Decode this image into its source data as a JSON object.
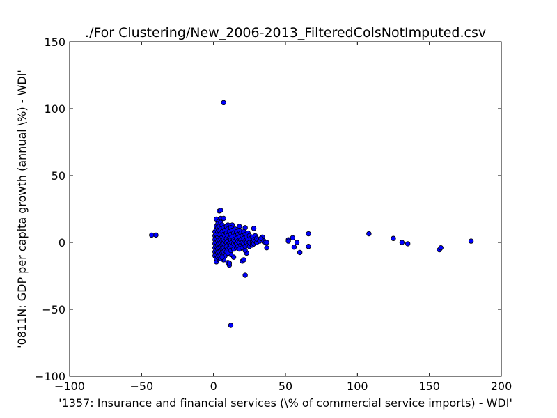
{
  "chart_data": {
    "type": "scatter",
    "title": "./For Clustering/New_2006-2013_FilteredColsNotImputed.csv",
    "xlabel": "'1357: Insurance and financial services  (\\% of commercial service imports) - WDI'",
    "ylabel": "'0811N: GDP per capita growth  (annual \\%) - WDI'",
    "xlim": [
      -100,
      200
    ],
    "ylim": [
      -100,
      150
    ],
    "xticks": [
      "−100",
      "−50",
      "0",
      "50",
      "100",
      "150",
      "200"
    ],
    "yticks": [
      "−100",
      "−50",
      "0",
      "50",
      "100",
      "150"
    ],
    "xtick_values": [
      -100,
      -50,
      0,
      50,
      100,
      150,
      200
    ],
    "ytick_values": [
      -100,
      -50,
      0,
      50,
      100,
      150
    ],
    "grid": false,
    "marker_color": "#0000ff",
    "marker_edge": "#000000",
    "points": [
      [
        7,
        104.5
      ],
      [
        12,
        -62
      ],
      [
        22,
        -24.5
      ],
      [
        -43,
        5.5
      ],
      [
        -40,
        5.5
      ],
      [
        4,
        23.5
      ],
      [
        5,
        24
      ],
      [
        2,
        17.5
      ],
      [
        5,
        18
      ],
      [
        7,
        18
      ],
      [
        3.5,
        15.5
      ],
      [
        10,
        13
      ],
      [
        13,
        13
      ],
      [
        18,
        12
      ],
      [
        22,
        11
      ],
      [
        28,
        10.5
      ],
      [
        52,
        2
      ],
      [
        52,
        1
      ],
      [
        55,
        3.5
      ],
      [
        56,
        -3.5
      ],
      [
        58,
        0
      ],
      [
        60,
        -7.5
      ],
      [
        66,
        6.5
      ],
      [
        66,
        -3
      ],
      [
        108,
        6.5
      ],
      [
        125,
        3
      ],
      [
        131,
        0
      ],
      [
        135,
        -1
      ],
      [
        157,
        -5.5
      ],
      [
        158,
        -4
      ],
      [
        179,
        1
      ],
      [
        34,
        4
      ],
      [
        35,
        1
      ],
      [
        36,
        0
      ],
      [
        37,
        -4
      ],
      [
        37,
        0
      ],
      [
        20,
        -14
      ],
      [
        21,
        -13
      ],
      [
        23,
        -8
      ],
      [
        10,
        -15
      ],
      [
        11,
        -17
      ],
      [
        11,
        -15.5
      ],
      [
        7,
        -13
      ],
      [
        2,
        -14.5
      ],
      [
        3,
        -12.5
      ],
      [
        14,
        -11
      ],
      [
        12,
        -9
      ],
      [
        8,
        -10
      ],
      [
        1,
        8
      ],
      [
        1,
        5
      ],
      [
        1,
        2
      ],
      [
        1,
        -1
      ],
      [
        1,
        -4
      ],
      [
        1,
        -7
      ],
      [
        1,
        -10
      ],
      [
        2,
        10
      ],
      [
        2,
        12
      ],
      [
        2,
        6
      ],
      [
        2,
        3
      ],
      [
        2,
        0
      ],
      [
        2,
        -3
      ],
      [
        2,
        -6
      ],
      [
        2,
        -9
      ],
      [
        2,
        -12
      ],
      [
        3,
        14
      ],
      [
        3,
        11
      ],
      [
        3,
        8
      ],
      [
        3,
        4
      ],
      [
        3,
        1
      ],
      [
        3,
        -2
      ],
      [
        3,
        -5
      ],
      [
        3,
        -8
      ],
      [
        3,
        -11
      ],
      [
        4,
        12
      ],
      [
        4,
        9
      ],
      [
        4,
        6
      ],
      [
        4,
        2
      ],
      [
        4,
        -1
      ],
      [
        4,
        -4
      ],
      [
        4,
        -7
      ],
      [
        4,
        -10
      ],
      [
        5,
        15
      ],
      [
        5,
        10
      ],
      [
        5,
        7
      ],
      [
        5,
        3
      ],
      [
        5,
        0
      ],
      [
        5,
        -3
      ],
      [
        5,
        -6
      ],
      [
        5,
        -9
      ],
      [
        5,
        -12
      ],
      [
        6,
        13
      ],
      [
        6,
        8
      ],
      [
        6,
        4
      ],
      [
        6,
        1
      ],
      [
        6,
        -2
      ],
      [
        6,
        -5
      ],
      [
        6,
        -8
      ],
      [
        6,
        -11
      ],
      [
        7,
        11
      ],
      [
        7,
        6
      ],
      [
        7,
        2
      ],
      [
        7,
        -1
      ],
      [
        7,
        -4
      ],
      [
        7,
        -7
      ],
      [
        8,
        9
      ],
      [
        8,
        5
      ],
      [
        8,
        1
      ],
      [
        8,
        -2
      ],
      [
        8,
        -6
      ],
      [
        9,
        12
      ],
      [
        9,
        7
      ],
      [
        9,
        3
      ],
      [
        9,
        0
      ],
      [
        9,
        -3
      ],
      [
        9,
        -7
      ],
      [
        10,
        10
      ],
      [
        10,
        5
      ],
      [
        10,
        1
      ],
      [
        10,
        -2
      ],
      [
        10,
        -5
      ],
      [
        10,
        -8
      ],
      [
        11,
        8
      ],
      [
        11,
        3
      ],
      [
        11,
        -1
      ],
      [
        11,
        -4
      ],
      [
        12,
        11
      ],
      [
        12,
        6
      ],
      [
        12,
        2
      ],
      [
        12,
        -2
      ],
      [
        12,
        -6
      ],
      [
        13,
        9
      ],
      [
        13,
        4
      ],
      [
        13,
        0
      ],
      [
        13,
        -3
      ],
      [
        14,
        7
      ],
      [
        14,
        2
      ],
      [
        14,
        -1
      ],
      [
        14,
        -5
      ],
      [
        15,
        10
      ],
      [
        15,
        5
      ],
      [
        15,
        1
      ],
      [
        15,
        -2
      ],
      [
        16,
        8
      ],
      [
        16,
        3
      ],
      [
        16,
        -1
      ],
      [
        16,
        -4
      ],
      [
        17,
        6
      ],
      [
        17,
        1
      ],
      [
        17,
        -3
      ],
      [
        18,
        9
      ],
      [
        18,
        4
      ],
      [
        18,
        0
      ],
      [
        18,
        -5
      ],
      [
        19,
        7
      ],
      [
        19,
        2
      ],
      [
        19,
        -2
      ],
      [
        20,
        5
      ],
      [
        20,
        0
      ],
      [
        20,
        -4
      ],
      [
        21,
        8
      ],
      [
        21,
        3
      ],
      [
        21,
        -1
      ],
      [
        22,
        6
      ],
      [
        22,
        1
      ],
      [
        22,
        -3
      ],
      [
        22,
        -6
      ],
      [
        23,
        4
      ],
      [
        23,
        0
      ],
      [
        24,
        7
      ],
      [
        24,
        2
      ],
      [
        24,
        -2
      ],
      [
        25,
        5
      ],
      [
        25,
        0
      ],
      [
        25,
        -3
      ],
      [
        26,
        3
      ],
      [
        26,
        -1
      ],
      [
        27,
        4
      ],
      [
        27,
        0
      ],
      [
        27,
        -2
      ],
      [
        28,
        2
      ],
      [
        28,
        -1
      ],
      [
        29,
        5
      ],
      [
        29,
        1
      ],
      [
        30,
        3
      ],
      [
        30,
        0
      ],
      [
        31,
        2
      ],
      [
        32,
        1
      ],
      [
        33,
        3
      ]
    ]
  }
}
